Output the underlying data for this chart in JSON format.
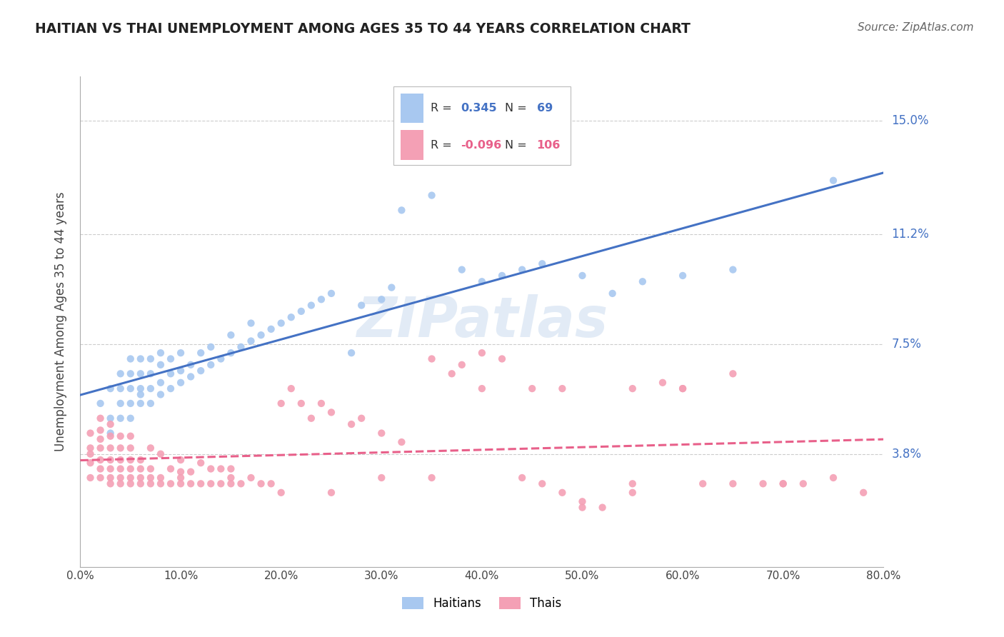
{
  "title": "HAITIAN VS THAI UNEMPLOYMENT AMONG AGES 35 TO 44 YEARS CORRELATION CHART",
  "source": "Source: ZipAtlas.com",
  "ylabel": "Unemployment Among Ages 35 to 44 years",
  "xlim": [
    0.0,
    0.8
  ],
  "ylim": [
    0.0,
    0.165
  ],
  "xticks": [
    0.0,
    0.1,
    0.2,
    0.3,
    0.4,
    0.5,
    0.6,
    0.7,
    0.8
  ],
  "xtick_labels": [
    "0.0%",
    "10.0%",
    "20.0%",
    "30.0%",
    "40.0%",
    "50.0%",
    "60.0%",
    "70.0%",
    "80.0%"
  ],
  "yticks": [
    0.0,
    0.038,
    0.075,
    0.112,
    0.15
  ],
  "ytick_labels": [
    "",
    "3.8%",
    "7.5%",
    "11.2%",
    "15.0%"
  ],
  "haitian_R": "0.345",
  "haitian_N": "69",
  "thai_R": "-0.096",
  "thai_N": "106",
  "haitian_color": "#a8c8f0",
  "thai_color": "#f4a0b5",
  "trend_haitian_color": "#4472c4",
  "trend_thai_color": "#e8608a",
  "watermark_color": "#d0dff0",
  "grid_color": "#cccccc",
  "title_color": "#222222",
  "axis_label_color": "#4472c4",
  "haitian_x": [
    0.02,
    0.03,
    0.03,
    0.03,
    0.04,
    0.04,
    0.04,
    0.04,
    0.05,
    0.05,
    0.05,
    0.05,
    0.05,
    0.06,
    0.06,
    0.06,
    0.06,
    0.06,
    0.07,
    0.07,
    0.07,
    0.07,
    0.08,
    0.08,
    0.08,
    0.08,
    0.09,
    0.09,
    0.09,
    0.1,
    0.1,
    0.1,
    0.11,
    0.11,
    0.12,
    0.12,
    0.13,
    0.13,
    0.14,
    0.15,
    0.15,
    0.16,
    0.17,
    0.17,
    0.18,
    0.19,
    0.2,
    0.21,
    0.22,
    0.23,
    0.24,
    0.25,
    0.27,
    0.28,
    0.3,
    0.31,
    0.32,
    0.35,
    0.38,
    0.4,
    0.42,
    0.44,
    0.46,
    0.5,
    0.53,
    0.56,
    0.6,
    0.65,
    0.75
  ],
  "haitian_y": [
    0.055,
    0.045,
    0.05,
    0.06,
    0.05,
    0.055,
    0.06,
    0.065,
    0.05,
    0.055,
    0.06,
    0.065,
    0.07,
    0.055,
    0.058,
    0.06,
    0.065,
    0.07,
    0.055,
    0.06,
    0.065,
    0.07,
    0.058,
    0.062,
    0.068,
    0.072,
    0.06,
    0.065,
    0.07,
    0.062,
    0.066,
    0.072,
    0.064,
    0.068,
    0.066,
    0.072,
    0.068,
    0.074,
    0.07,
    0.072,
    0.078,
    0.074,
    0.076,
    0.082,
    0.078,
    0.08,
    0.082,
    0.084,
    0.086,
    0.088,
    0.09,
    0.092,
    0.072,
    0.088,
    0.09,
    0.094,
    0.12,
    0.125,
    0.1,
    0.096,
    0.098,
    0.1,
    0.102,
    0.098,
    0.092,
    0.096,
    0.098,
    0.1,
    0.13
  ],
  "thai_x": [
    0.01,
    0.01,
    0.01,
    0.01,
    0.01,
    0.02,
    0.02,
    0.02,
    0.02,
    0.02,
    0.02,
    0.02,
    0.03,
    0.03,
    0.03,
    0.03,
    0.03,
    0.03,
    0.03,
    0.04,
    0.04,
    0.04,
    0.04,
    0.04,
    0.04,
    0.05,
    0.05,
    0.05,
    0.05,
    0.05,
    0.05,
    0.06,
    0.06,
    0.06,
    0.06,
    0.07,
    0.07,
    0.07,
    0.07,
    0.08,
    0.08,
    0.08,
    0.09,
    0.09,
    0.1,
    0.1,
    0.1,
    0.11,
    0.11,
    0.12,
    0.12,
    0.13,
    0.13,
    0.14,
    0.14,
    0.15,
    0.15,
    0.16,
    0.17,
    0.18,
    0.19,
    0.2,
    0.21,
    0.22,
    0.23,
    0.24,
    0.25,
    0.27,
    0.28,
    0.3,
    0.32,
    0.35,
    0.37,
    0.38,
    0.4,
    0.42,
    0.44,
    0.46,
    0.48,
    0.5,
    0.52,
    0.55,
    0.58,
    0.6,
    0.62,
    0.65,
    0.68,
    0.7,
    0.72,
    0.75,
    0.4,
    0.45,
    0.5,
    0.55,
    0.2,
    0.25,
    0.3,
    0.35,
    0.1,
    0.15,
    0.6,
    0.65,
    0.7,
    0.78,
    0.48,
    0.55
  ],
  "thai_y": [
    0.038,
    0.03,
    0.035,
    0.04,
    0.045,
    0.03,
    0.033,
    0.036,
    0.04,
    0.043,
    0.046,
    0.05,
    0.028,
    0.03,
    0.033,
    0.036,
    0.04,
    0.044,
    0.048,
    0.028,
    0.03,
    0.033,
    0.036,
    0.04,
    0.044,
    0.028,
    0.03,
    0.033,
    0.036,
    0.04,
    0.044,
    0.028,
    0.03,
    0.033,
    0.036,
    0.028,
    0.03,
    0.033,
    0.04,
    0.028,
    0.03,
    0.038,
    0.028,
    0.033,
    0.028,
    0.03,
    0.036,
    0.028,
    0.032,
    0.028,
    0.035,
    0.028,
    0.033,
    0.028,
    0.033,
    0.028,
    0.033,
    0.028,
    0.03,
    0.028,
    0.028,
    0.055,
    0.06,
    0.055,
    0.05,
    0.055,
    0.052,
    0.048,
    0.05,
    0.045,
    0.042,
    0.07,
    0.065,
    0.068,
    0.072,
    0.07,
    0.03,
    0.028,
    0.025,
    0.022,
    0.02,
    0.06,
    0.062,
    0.06,
    0.028,
    0.028,
    0.028,
    0.028,
    0.028,
    0.03,
    0.06,
    0.06,
    0.02,
    0.025,
    0.025,
    0.025,
    0.03,
    0.03,
    0.032,
    0.03,
    0.06,
    0.065,
    0.028,
    0.025,
    0.06,
    0.028
  ]
}
